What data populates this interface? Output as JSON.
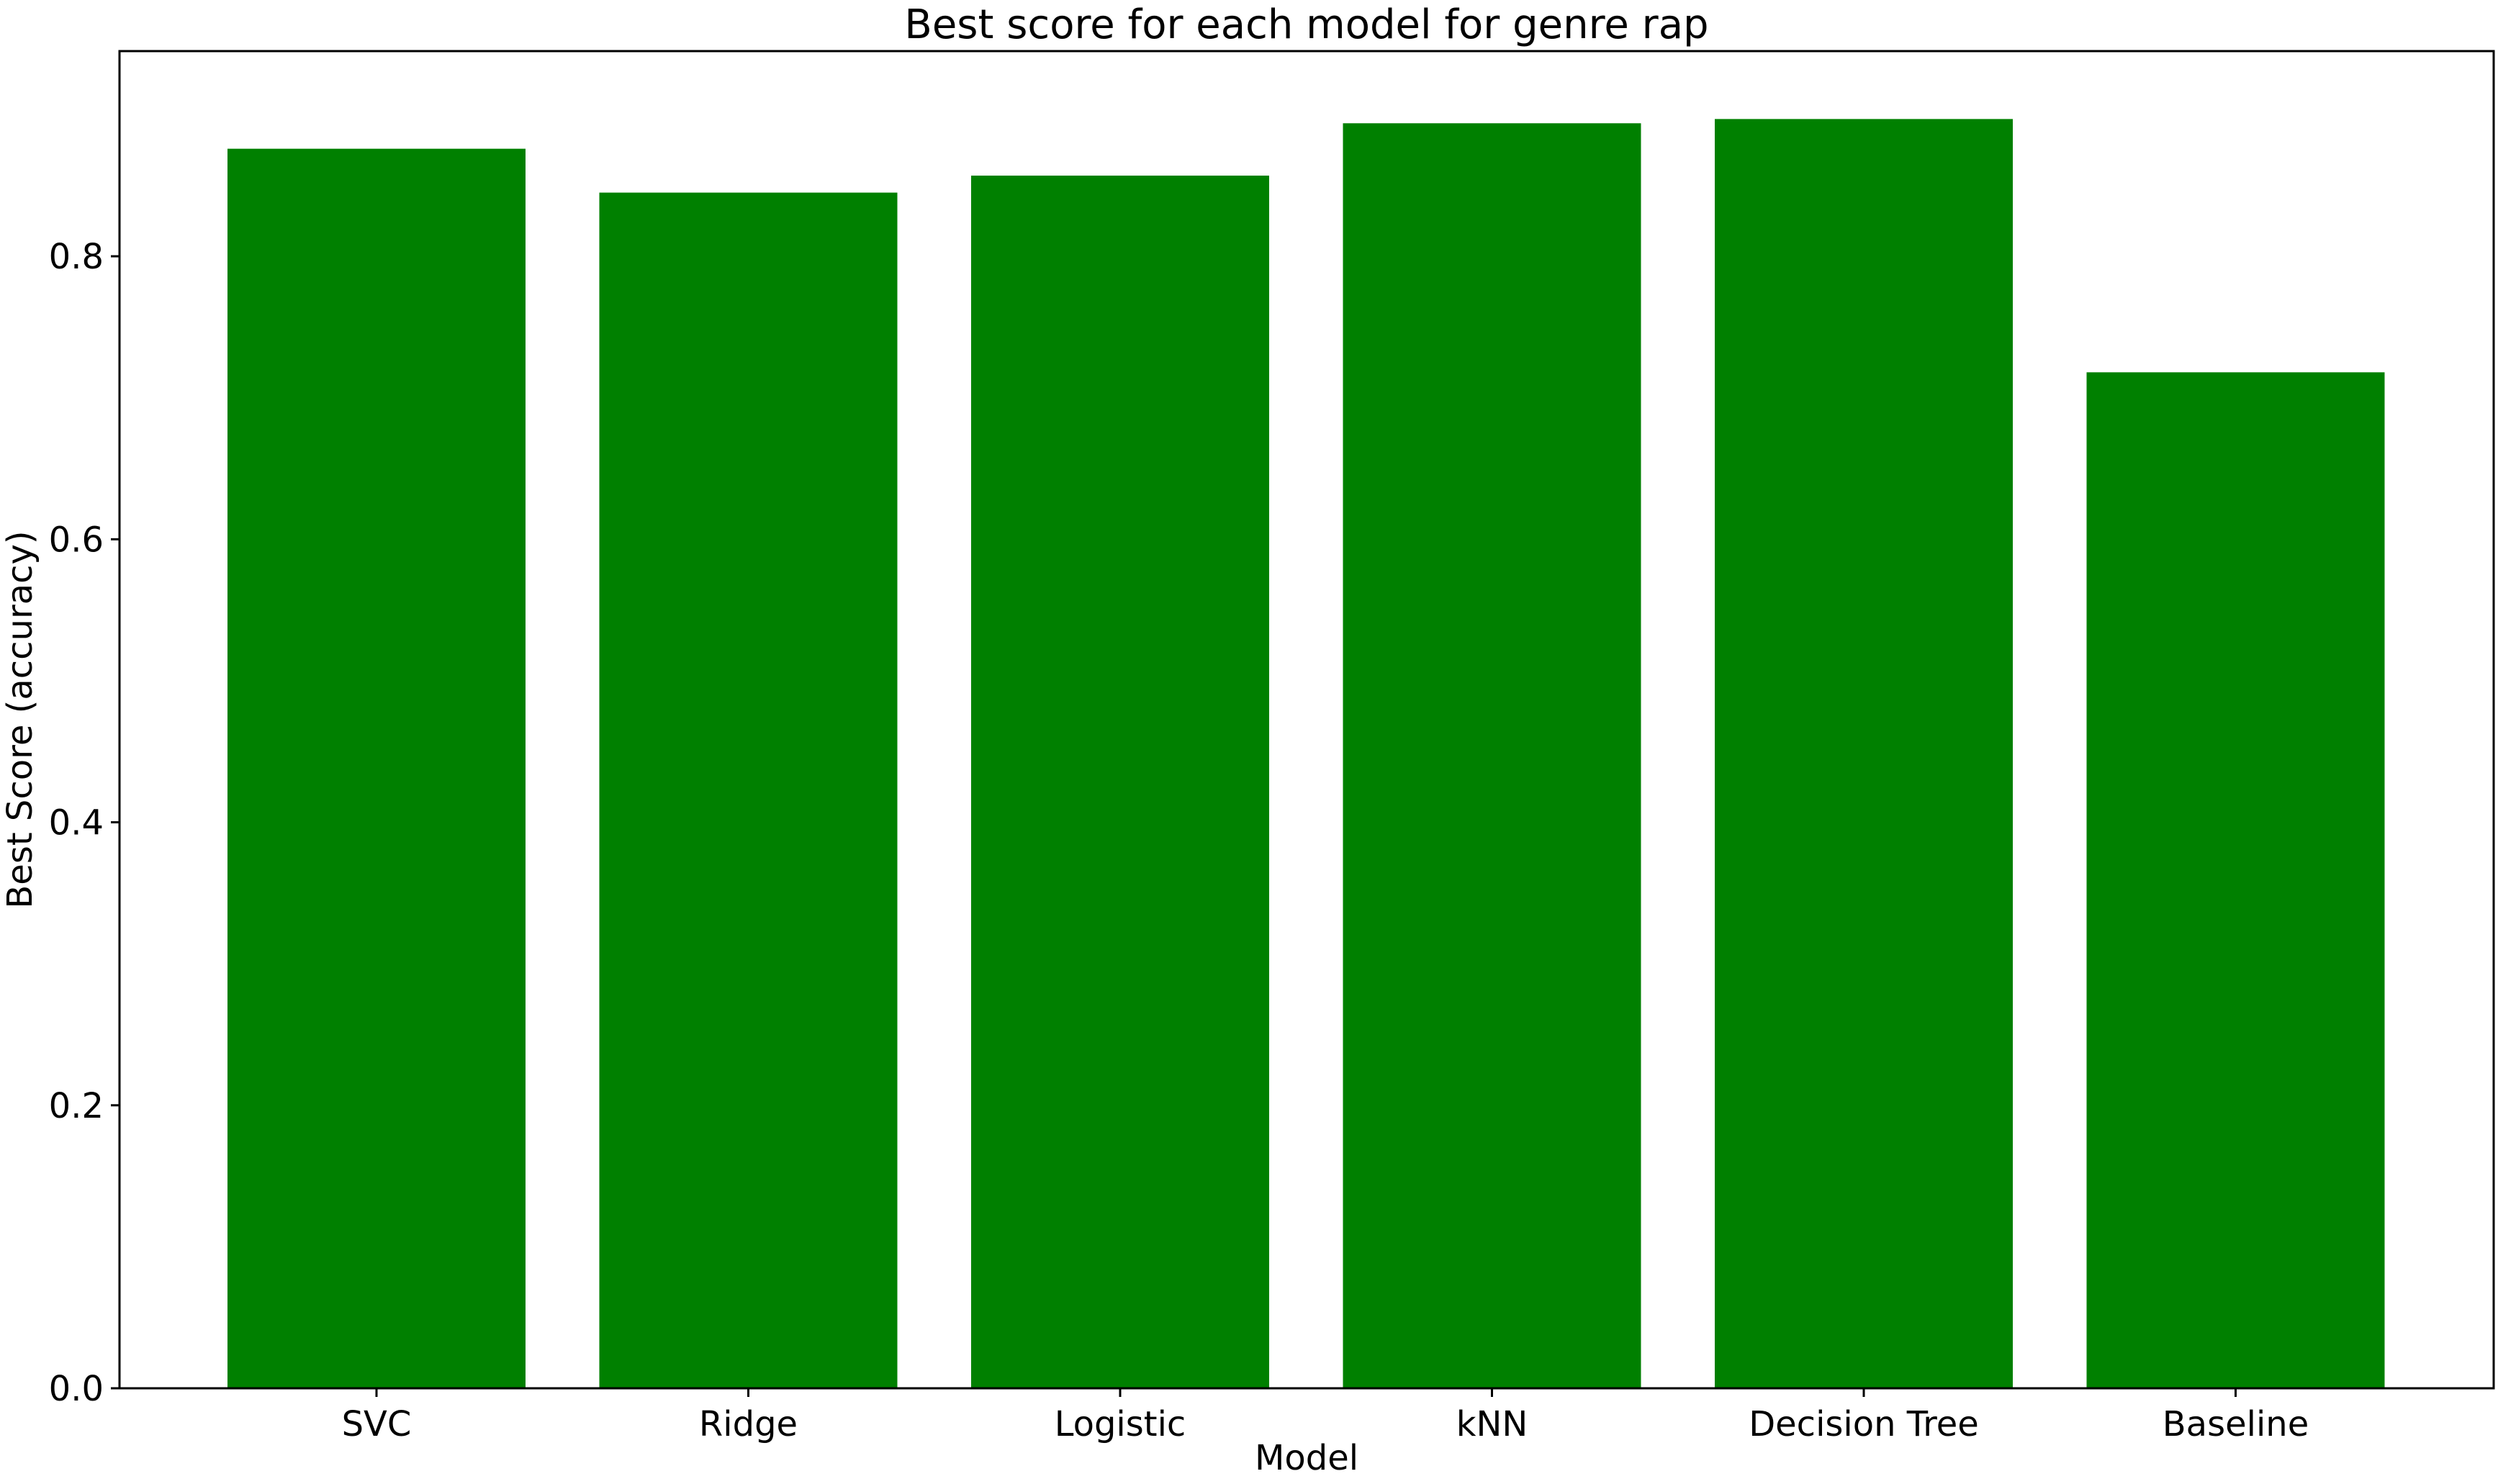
{
  "chart_data": {
    "type": "bar",
    "title": "Best score for each model for genre rap",
    "xlabel": "Model",
    "ylabel": "Best Score (accuracy)",
    "categories": [
      "SVC",
      "Ridge",
      "Logistic",
      "kNN",
      "Decision Tree",
      "Baseline"
    ],
    "values": [
      0.876,
      0.845,
      0.857,
      0.894,
      0.897,
      0.718
    ],
    "ylim": [
      0,
      0.945
    ],
    "yticks": [
      0.0,
      0.2,
      0.4,
      0.6,
      0.8
    ],
    "ytick_labels": [
      "0.0",
      "0.2",
      "0.4",
      "0.6",
      "0.8"
    ],
    "bar_color": "#008000",
    "grid": false,
    "legend": "none"
  }
}
